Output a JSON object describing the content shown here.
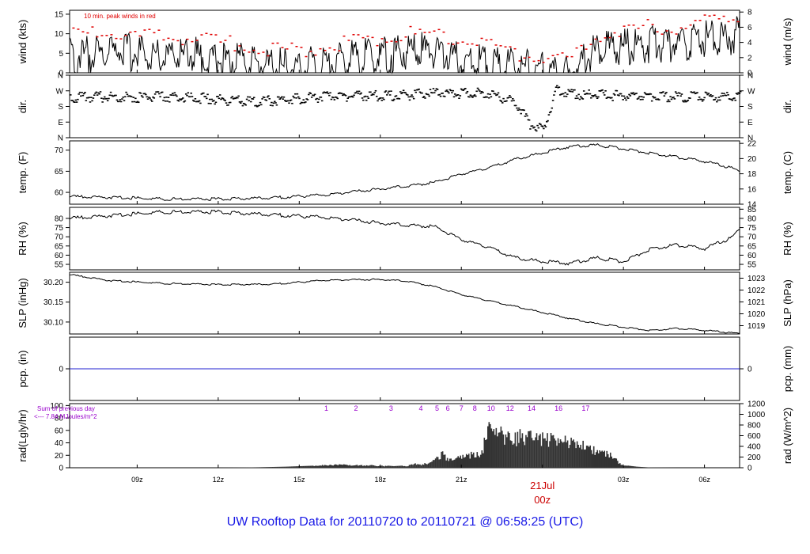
{
  "title": "UW Rooftop Data for 20110720  to  20110721 @ 06:58:25  (UTC)",
  "colors": {
    "frame": "#000000",
    "trace": "#000000",
    "peak": "#e00000",
    "pcp_line": "#2020d0",
    "annotation": "#9900cc",
    "date_label": "#cc0000",
    "title": "#1a1ae6",
    "rad_fill": "#333333"
  },
  "chart_data": [
    {
      "type": "line",
      "id": "wind",
      "ylabel_left": "wind (kts)",
      "ylabel_right": "wind (m/s)",
      "yticks_left": [
        "0",
        "5",
        "10",
        "15"
      ],
      "yticks_right": [
        "0",
        "2",
        "4",
        "6",
        "8"
      ],
      "ylim_left": [
        0,
        16
      ],
      "ylim_right": [
        0,
        8.23
      ],
      "annotation": "10 min. peak winds in red",
      "series": [
        {
          "x": [
            7,
            8,
            9,
            10,
            11,
            12,
            13,
            14,
            15,
            16,
            17,
            18,
            19,
            20,
            21,
            22,
            23,
            24,
            25,
            26,
            27,
            28,
            29,
            30,
            31
          ],
          "y": [
            7,
            8,
            7.5,
            7,
            7,
            6,
            5,
            4,
            4,
            5,
            6,
            7,
            8,
            8,
            6,
            5,
            4,
            3,
            2,
            8,
            9,
            10,
            10,
            11,
            12
          ]
        },
        {
          "x": [
            7,
            8,
            9,
            10,
            11,
            12,
            13,
            14,
            15,
            16,
            17,
            18,
            19,
            20,
            21,
            22,
            23,
            24,
            25,
            26,
            27,
            28,
            29,
            30,
            31
          ],
          "y": [
            11,
            11,
            10.5,
            10,
            10,
            9,
            8,
            7,
            7,
            8,
            9,
            10,
            11,
            11,
            10,
            8,
            6,
            5,
            4,
            11,
            12,
            13,
            13,
            14,
            15
          ]
        }
      ]
    },
    {
      "type": "scatter",
      "id": "dir",
      "ylabel_left": "dir.",
      "ylabel_right": "dir.",
      "yticks_left": [
        "N",
        "E",
        "S",
        "W",
        "N"
      ],
      "yticks_right": [
        "N",
        "E",
        "S",
        "W",
        "N"
      ],
      "ylim": [
        0,
        360
      ],
      "series": [
        {
          "x": [
            7,
            8,
            9,
            10,
            11,
            12,
            13,
            14,
            15,
            16,
            17,
            18,
            19,
            20,
            21,
            22,
            23,
            23.5,
            24,
            24.5,
            25,
            26,
            27,
            28,
            29,
            30,
            31
          ],
          "y": [
            250,
            255,
            250,
            255,
            250,
            240,
            225,
            230,
            245,
            255,
            260,
            260,
            265,
            275,
            275,
            275,
            220,
            100,
            60,
            300,
            270,
            265,
            260,
            258,
            255,
            255,
            255
          ]
        }
      ]
    },
    {
      "type": "line",
      "id": "temp",
      "ylabel_left": "temp. (F)",
      "ylabel_right": "temp. (C)",
      "yticks_left": [
        "60",
        "65",
        "70"
      ],
      "yticks_right": [
        "14",
        "16",
        "18",
        "20",
        "22"
      ],
      "ylim_left": [
        57.2,
        72.2
      ],
      "ylim_right": [
        14,
        22.33
      ],
      "series": [
        {
          "x": [
            6.5,
            8,
            10,
            12,
            14,
            16,
            18,
            20,
            21,
            22,
            23,
            24,
            25,
            26,
            27,
            28,
            29,
            30,
            31,
            31.3
          ],
          "y": [
            59.2,
            59,
            58.6,
            58.6,
            58.9,
            59.6,
            61,
            62.5,
            64.5,
            66,
            68,
            69.5,
            71,
            71.4,
            70.5,
            69.5,
            68.5,
            67.5,
            66,
            65.2
          ]
        }
      ]
    },
    {
      "type": "line",
      "id": "rh",
      "ylabel_left": "RH (%)",
      "ylabel_right": "RH (%)",
      "yticks_left": [
        "55",
        "60",
        "65",
        "70",
        "75",
        "80"
      ],
      "yticks_right": [
        "55",
        "60",
        "65",
        "70",
        "75",
        "80",
        "85"
      ],
      "ylim": [
        52,
        86
      ],
      "series": [
        {
          "x": [
            6.5,
            8,
            10,
            12,
            14,
            16,
            18,
            19,
            20,
            21,
            22,
            23,
            24,
            25,
            26,
            27,
            28,
            29,
            30,
            31,
            31.3
          ],
          "y": [
            80.5,
            82,
            84,
            84,
            82.5,
            81,
            78,
            77,
            76,
            69,
            65,
            59,
            57,
            56,
            59,
            57,
            64,
            66,
            64,
            70,
            75
          ]
        }
      ]
    },
    {
      "type": "line",
      "id": "slp",
      "ylabel_left": "SLP (inHg)",
      "ylabel_right": "SLP (hPa)",
      "yticks_left": [
        "30.10",
        "30.15",
        "30.20"
      ],
      "yticks_right": [
        "1019",
        "1020",
        "1021",
        "1022",
        "1023"
      ],
      "ylim_left": [
        30.07,
        30.225
      ],
      "ylim_right": [
        1018.3,
        1023.5
      ],
      "series": [
        {
          "x": [
            6.5,
            8,
            10,
            12,
            14,
            16,
            18,
            19,
            20,
            21,
            22,
            23,
            24,
            25,
            26,
            27,
            28,
            29,
            30,
            31,
            31.3
          ],
          "y": [
            30.22,
            30.205,
            30.198,
            30.195,
            30.196,
            30.206,
            30.208,
            30.204,
            30.19,
            30.17,
            30.155,
            30.14,
            30.125,
            30.11,
            30.097,
            30.088,
            30.08,
            30.085,
            30.08,
            30.074,
            30.073
          ]
        }
      ]
    },
    {
      "type": "line",
      "id": "pcp",
      "ylabel_left": "pcp. (in)",
      "ylabel_right": "pcp. (mm)",
      "yticks_left": [
        "0"
      ],
      "yticks_right": [
        "0"
      ],
      "series": [
        {
          "x": [
            6.5,
            31.3
          ],
          "y": [
            0,
            0
          ]
        }
      ]
    },
    {
      "type": "area",
      "id": "rad",
      "ylabel_left": "rad(Lgly/hr)",
      "ylabel_right": "rad (W/m^2)",
      "yticks_left": [
        "0",
        "20",
        "40",
        "60",
        "80",
        "100"
      ],
      "yticks_right": [
        "0",
        "200",
        "400",
        "600",
        "800",
        "1000",
        "1200"
      ],
      "ylim_left": [
        0,
        103
      ],
      "ylim_right": [
        0,
        1200
      ],
      "annotation_line1": "Sum of previous day",
      "annotation_line2": "<--- 7.84 MJoules/m^2",
      "hour_markers": [
        "1",
        "2",
        "3",
        "4",
        "5",
        "6",
        "7",
        "8",
        "10",
        "12",
        "14",
        "16",
        "17"
      ],
      "hour_marker_x": [
        16,
        17.1,
        18.4,
        19.5,
        20.1,
        20.5,
        21,
        21.5,
        22.1,
        22.8,
        23.6,
        24.6,
        25.6
      ],
      "series": [
        {
          "x": [
            11.5,
            12.5,
            13.5,
            14.5,
            15.5,
            16,
            16.5,
            17,
            18,
            18.5,
            19,
            19.4,
            19.5,
            19.8,
            20,
            20.3,
            20.5,
            21,
            21.5,
            21.7,
            22,
            22.5,
            23,
            23.5,
            24,
            24.5,
            25,
            25.5,
            26,
            26.5,
            27,
            27.5,
            28,
            29,
            30
          ],
          "y": [
            0,
            3,
            9,
            20,
            38,
            60,
            68,
            60,
            50,
            30,
            45,
            110,
            60,
            120,
            160,
            330,
            180,
            270,
            310,
            280,
            870,
            790,
            720,
            750,
            690,
            640,
            600,
            520,
            420,
            300,
            50,
            20,
            5,
            0,
            0
          ]
        }
      ]
    }
  ],
  "x_axis": {
    "ticks": [
      "09z",
      "12z",
      "15z",
      "18z",
      "21z",
      "00z",
      "03z",
      "06z"
    ],
    "tick_hours": [
      9,
      12,
      15,
      18,
      21,
      24,
      27,
      30
    ],
    "date_label": "21Jul"
  }
}
